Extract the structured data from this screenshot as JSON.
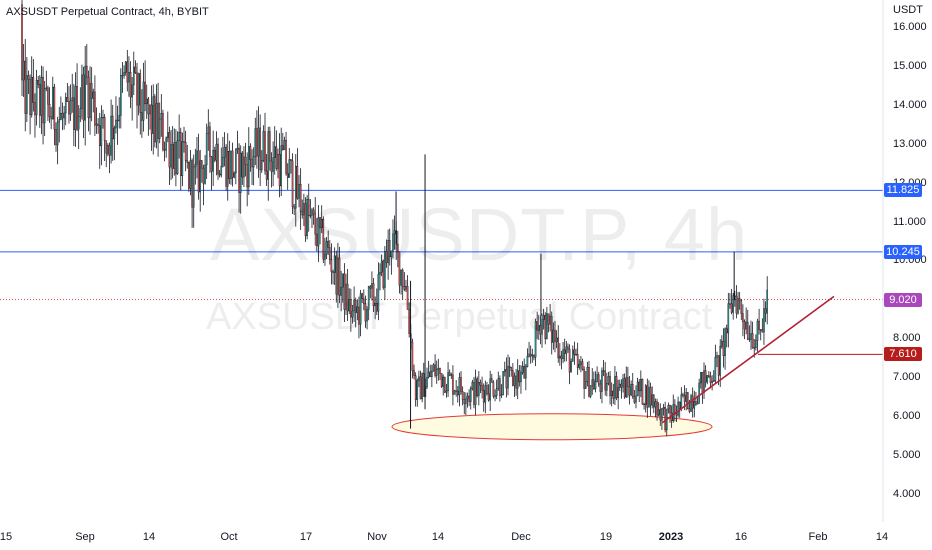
{
  "header": {
    "title": "AXSUSDT Perpetual Contract, 4h, BYBIT",
    "unit": "USDT"
  },
  "watermark": {
    "line1": "AXSUSDT.P, 4h",
    "line2": "AXSUSDT Perpetual Contract"
  },
  "chart_data": {
    "type": "candlestick",
    "symbol": "AXSUSDT Perpetual Contract",
    "timeframe": "4h",
    "exchange": "BYBIT",
    "ylim": [
      3.5,
      16.5
    ],
    "y_ticks": [
      "16.000",
      "15.000",
      "14.000",
      "13.000",
      "12.000",
      "11.000",
      "10.000",
      "9.000",
      "8.000",
      "7.000",
      "6.000",
      "5.000",
      "4.000"
    ],
    "x_ticks": [
      "15",
      "Sep",
      "14",
      "Oct",
      "17",
      "Nov",
      "14",
      "Dec",
      "19",
      "2023",
      "16",
      "Feb",
      "14"
    ],
    "x_ticks_bold": [
      "2023"
    ],
    "price_path": [
      {
        "t": "Aug 15",
        "price": 16.6
      },
      {
        "t": "Aug 17",
        "price": 14.8
      },
      {
        "t": "Aug 21",
        "price": 14.2
      },
      {
        "t": "Aug 25",
        "price": 13.9
      },
      {
        "t": "Aug 29",
        "price": 13.5
      },
      {
        "t": "Sep 2",
        "price": 14.6
      },
      {
        "t": "Sep 6",
        "price": 13.0
      },
      {
        "t": "Sep 10",
        "price": 14.7
      },
      {
        "t": "Sep 14",
        "price": 13.8
      },
      {
        "t": "Sep 19",
        "price": 13.1
      },
      {
        "t": "Sep 24",
        "price": 12.0
      },
      {
        "t": "Sep 28",
        "price": 13.0
      },
      {
        "t": "Oct 3",
        "price": 12.3
      },
      {
        "t": "Oct 8",
        "price": 12.9
      },
      {
        "t": "Oct 13",
        "price": 12.5
      },
      {
        "t": "Oct 17",
        "price": 11.3
      },
      {
        "t": "Oct 22",
        "price": 10.2
      },
      {
        "t": "Oct 27",
        "price": 8.6
      },
      {
        "t": "Nov 1",
        "price": 9.1
      },
      {
        "t": "Nov 4",
        "price": 10.6
      },
      {
        "t": "Nov 7",
        "price": 9.4
      },
      {
        "t": "Nov 9",
        "price": 6.6
      },
      {
        "t": "Nov 13",
        "price": 7.2
      },
      {
        "t": "Nov 20",
        "price": 6.6
      },
      {
        "t": "Nov 27",
        "price": 6.9
      },
      {
        "t": "Dec 2",
        "price": 7.1
      },
      {
        "t": "Dec 5",
        "price": 8.6
      },
      {
        "t": "Dec 10",
        "price": 7.6
      },
      {
        "t": "Dec 15",
        "price": 6.9
      },
      {
        "t": "Dec 21",
        "price": 6.8
      },
      {
        "t": "Dec 27",
        "price": 6.6
      },
      {
        "t": "Dec 31",
        "price": 5.95
      },
      {
        "t": "Jan 5",
        "price": 6.5
      },
      {
        "t": "Jan 11",
        "price": 7.4
      },
      {
        "t": "Jan 14",
        "price": 9.2
      },
      {
        "t": "Jan 17",
        "price": 8.3
      },
      {
        "t": "Jan 19",
        "price": 8.0
      },
      {
        "t": "Jan 21",
        "price": 9.02
      }
    ],
    "spikes": [
      {
        "t": "Nov 11",
        "high": 12.75,
        "low": 6.2
      },
      {
        "t": "Nov 8",
        "high": 9.5,
        "low": 5.7
      },
      {
        "t": "Nov 5",
        "high": 11.8,
        "low": 10.3
      },
      {
        "t": "Dec 5",
        "high": 10.2,
        "low": 8.6
      },
      {
        "t": "Jan 14",
        "high": 10.25,
        "low": 9.0
      }
    ],
    "horizontal_levels": [
      {
        "value": 11.825,
        "label": "11.825",
        "color": "#2962ff"
      },
      {
        "value": 10.245,
        "label": "10.245",
        "color": "#2962ff"
      }
    ],
    "last_price": {
      "value": 9.02,
      "label": "9.020",
      "color": "#ab47bc"
    },
    "marker": {
      "value": 7.61,
      "label": "7.610",
      "color": "#b71c1c"
    },
    "trendline": {
      "from": {
        "t": "Dec 31",
        "price": 5.85
      },
      "to": {
        "t": "Feb 5",
        "price": 9.1
      },
      "color": "#b22234"
    },
    "ellipse": {
      "t_center": "Dec 1",
      "price": 5.75,
      "fill": "#fffbe0",
      "stroke": "#e53935"
    },
    "colors": {
      "up": "#26a69a",
      "down": "#ef5350"
    },
    "grid": false
  }
}
